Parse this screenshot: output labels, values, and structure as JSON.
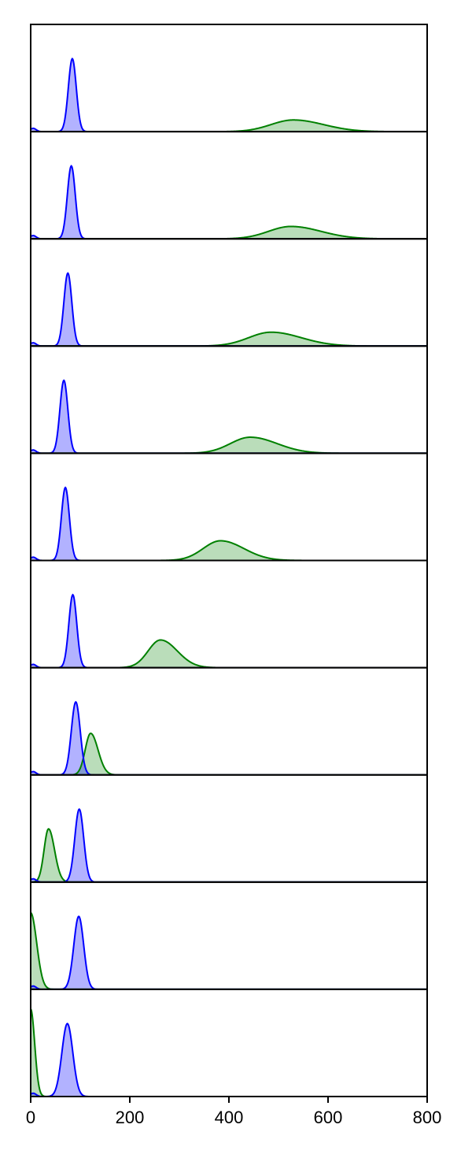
{
  "chart_data": {
    "type": "area",
    "xlim": [
      0,
      800
    ],
    "x_ticks": [
      0,
      200,
      400,
      600,
      800
    ],
    "x_tick_labels": [
      "0",
      "200",
      "400",
      "600",
      "800"
    ],
    "colors": {
      "blue": "#0000ff",
      "green": "#008000",
      "blue_fill": "#b3b3ff",
      "green_fill": "#b3d9b3",
      "frame": "#000000"
    },
    "grid": false,
    "legend": "none",
    "panels": [
      {
        "blue_peak": 84,
        "blue_width": 8,
        "green_peak": 530,
        "green_width": 45,
        "green_height": 0.16
      },
      {
        "blue_peak": 82,
        "blue_width": 8,
        "green_peak": 525,
        "green_width": 45,
        "green_height": 0.17
      },
      {
        "blue_peak": 75,
        "blue_width": 8,
        "green_peak": 485,
        "green_width": 45,
        "green_height": 0.19
      },
      {
        "blue_peak": 67,
        "blue_width": 8,
        "green_peak": 443,
        "green_width": 40,
        "green_height": 0.22
      },
      {
        "blue_peak": 70,
        "blue_width": 8,
        "green_peak": 383,
        "green_width": 35,
        "green_height": 0.27
      },
      {
        "blue_peak": 85,
        "blue_width": 8,
        "green_peak": 262,
        "green_width": 25,
        "green_height": 0.38
      },
      {
        "blue_peak": 91,
        "blue_width": 9,
        "green_peak": 121,
        "green_width": 11,
        "green_height": 0.57
      },
      {
        "blue_peak": 98,
        "blue_width": 9,
        "green_peak": 36,
        "green_width": 9,
        "green_height": 0.73
      },
      {
        "blue_peak": 97,
        "blue_width": 10,
        "green_peak": 0,
        "green_width": 9,
        "green_height": 1.05
      },
      {
        "blue_peak": 74,
        "blue_width": 11,
        "green_peak": 0,
        "green_width": 6,
        "green_height": 1.2
      }
    ]
  }
}
